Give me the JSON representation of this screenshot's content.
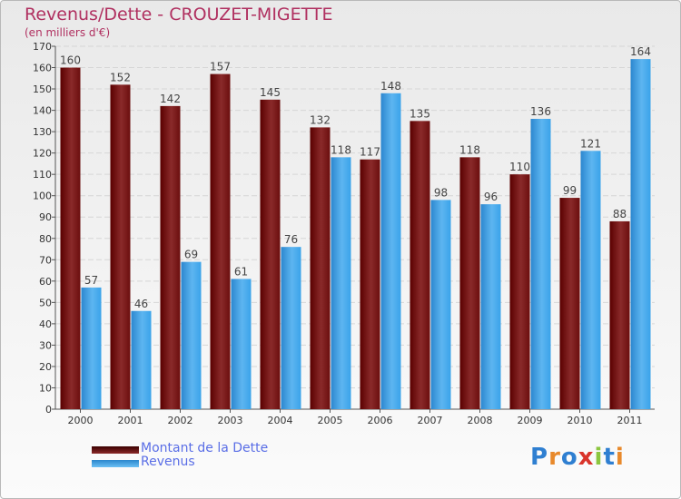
{
  "header": {
    "title": "Revenus/Dette - CROUZET-MIGETTE",
    "subtitle": "(en milliers d'€)"
  },
  "legend": {
    "items": [
      {
        "label": "Montant de la Dette",
        "color": "#6b0e0e"
      },
      {
        "label": "Revenus",
        "color": "#3aa3ea"
      }
    ]
  },
  "logo": {
    "text": "Proxiti",
    "colors": [
      "#2f7fd1",
      "#e8892b",
      "#2f7fd1",
      "#d9342b",
      "#8cc63f",
      "#2f7fd1",
      "#e8892b"
    ]
  },
  "chart_data": {
    "type": "bar",
    "title": "Revenus/Dette - CROUZET-MIGETTE",
    "subtitle": "(en milliers d'€)",
    "categories": [
      "2000",
      "2001",
      "2002",
      "2003",
      "2004",
      "2005",
      "2006",
      "2007",
      "2008",
      "2009",
      "2010",
      "2011"
    ],
    "series": [
      {
        "name": "Montant de la Dette",
        "color": "#6b0e0e",
        "values": [
          160,
          152,
          142,
          157,
          145,
          132,
          117,
          135,
          118,
          110,
          99,
          88
        ]
      },
      {
        "name": "Revenus",
        "color": "#3aa3ea",
        "values": [
          57,
          46,
          69,
          61,
          76,
          118,
          148,
          98,
          96,
          136,
          121,
          164
        ]
      }
    ],
    "ylim": [
      0,
      170
    ],
    "ytick_step": 10,
    "grid": true,
    "legend_position": "bottom-left"
  }
}
